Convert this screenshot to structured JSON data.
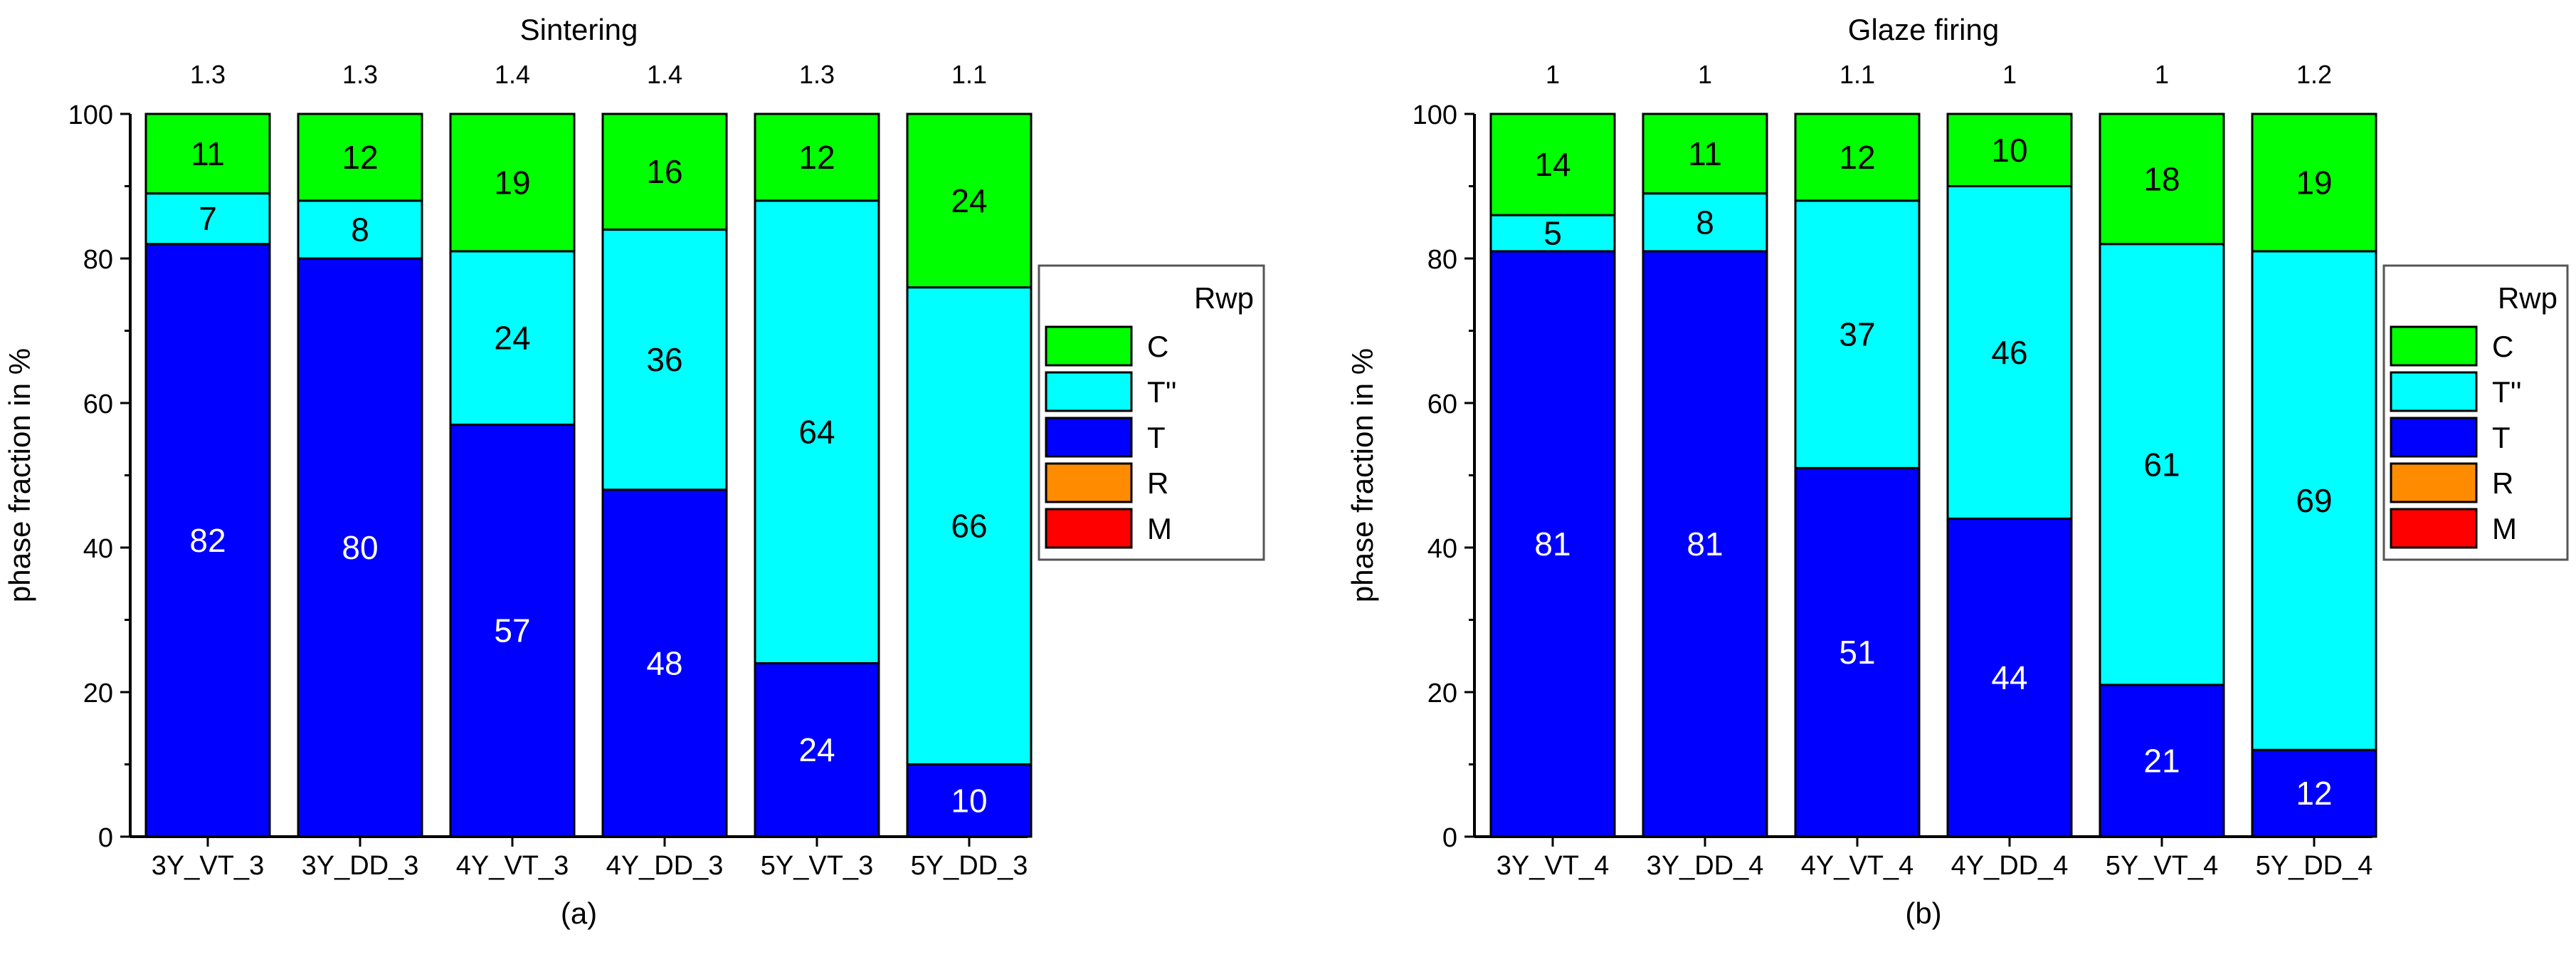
{
  "colors": {
    "C": "#00ff00",
    "T''": "#00ffff",
    "T": "#0000ff",
    "R": "#ff8c00",
    "M": "#ff0000",
    "axis": "#000000",
    "background": "#ffffff"
  },
  "legend": {
    "title": "Rwp",
    "items": [
      {
        "key": "C",
        "label": "C"
      },
      {
        "key": "T''",
        "label": "T''"
      },
      {
        "key": "T",
        "label": "T"
      },
      {
        "key": "R",
        "label": "R"
      },
      {
        "key": "M",
        "label": "M"
      }
    ]
  },
  "chart_data": [
    {
      "type": "bar",
      "stacked": true,
      "title": "Sintering",
      "panel_label": "(a)",
      "ylabel": "phase fraction in %",
      "xlabel": "",
      "ylim": [
        0,
        100
      ],
      "yticks": [
        0,
        20,
        40,
        60,
        80,
        100
      ],
      "categories": [
        "3Y_VT_3",
        "3Y_DD_3",
        "4Y_VT_3",
        "4Y_DD_3",
        "5Y_VT_3",
        "5Y_DD_3"
      ],
      "rwp": [
        "1.3",
        "1.3",
        "1.4",
        "1.4",
        "1.3",
        "1.1"
      ],
      "series": [
        {
          "name": "T",
          "values": [
            82,
            80,
            57,
            48,
            24,
            10
          ]
        },
        {
          "name": "T''",
          "values": [
            7,
            8,
            24,
            36,
            64,
            66
          ]
        },
        {
          "name": "C",
          "values": [
            11,
            12,
            19,
            16,
            12,
            24
          ]
        }
      ],
      "legend_position": "right"
    },
    {
      "type": "bar",
      "stacked": true,
      "title": "Glaze firing",
      "panel_label": "(b)",
      "ylabel": "phase fraction in %",
      "xlabel": "",
      "ylim": [
        0,
        100
      ],
      "yticks": [
        0,
        20,
        40,
        60,
        80,
        100
      ],
      "categories": [
        "3Y_VT_4",
        "3Y_DD_4",
        "4Y_VT_4",
        "4Y_DD_4",
        "5Y_VT_4",
        "5Y_DD_4"
      ],
      "rwp": [
        "1",
        "1",
        "1.1",
        "1",
        "1",
        "1.2"
      ],
      "series": [
        {
          "name": "T",
          "values": [
            81,
            81,
            51,
            44,
            21,
            12
          ]
        },
        {
          "name": "T''",
          "values": [
            5,
            8,
            37,
            46,
            61,
            69
          ]
        },
        {
          "name": "C",
          "values": [
            14,
            11,
            12,
            10,
            18,
            19
          ]
        }
      ],
      "legend_position": "right"
    }
  ]
}
